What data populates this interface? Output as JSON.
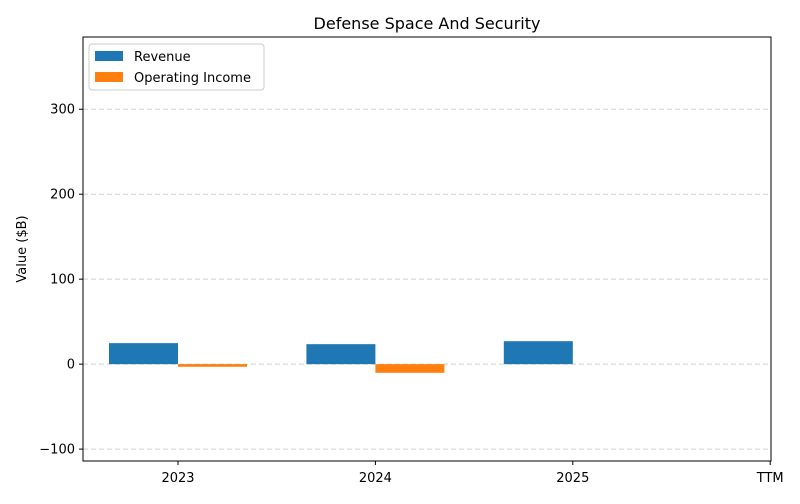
{
  "chart_data": {
    "type": "bar",
    "title": "Defense Space And Security",
    "xlabel": "",
    "ylabel": "Value ($B)",
    "categories": [
      "2023",
      "2024",
      "2025",
      "TTM"
    ],
    "series": [
      {
        "name": "Revenue",
        "color": "#1f77b4",
        "values": [
          24.7,
          23.5,
          27.0,
          null
        ]
      },
      {
        "name": "Operating Income",
        "color": "#ff7f0e",
        "values": [
          -3.1,
          -10.2,
          null,
          null
        ]
      }
    ],
    "ylim": [
      -114,
      385
    ],
    "yticks": [
      -100,
      0,
      100,
      200,
      300
    ],
    "ytick_labels": [
      "−100",
      "0",
      "100",
      "200",
      "300"
    ],
    "grid": "y dashed",
    "legend": "top-left"
  }
}
